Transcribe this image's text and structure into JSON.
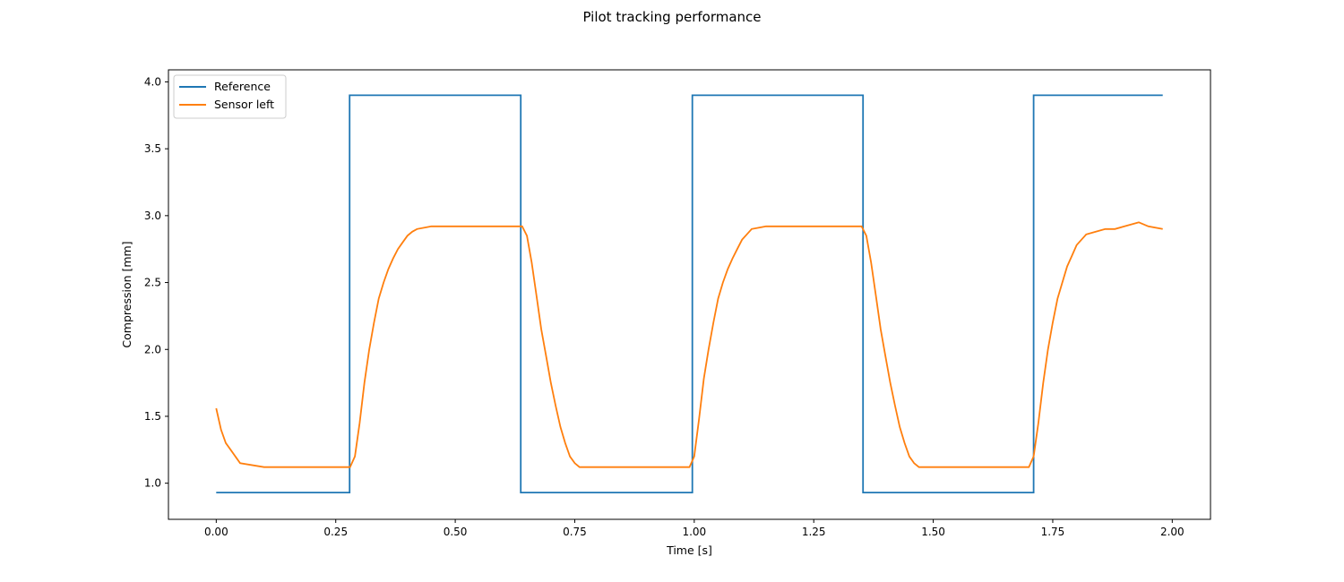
{
  "chart_data": {
    "type": "line",
    "title": "Pilot tracking performance",
    "xlabel": "Time [s]",
    "ylabel": "Compression [mm]",
    "xlim": [
      -0.1,
      2.08
    ],
    "ylim": [
      0.73,
      4.09
    ],
    "xticks": [
      0.0,
      0.25,
      0.5,
      0.75,
      1.0,
      1.25,
      1.5,
      1.75,
      2.0
    ],
    "xtick_labels": [
      "0.00",
      "0.25",
      "0.50",
      "0.75",
      "1.00",
      "1.25",
      "1.50",
      "1.75",
      "2.00"
    ],
    "yticks": [
      1.0,
      1.5,
      2.0,
      2.5,
      3.0,
      3.5,
      4.0
    ],
    "ytick_labels": [
      "1.0",
      "1.5",
      "2.0",
      "2.5",
      "3.0",
      "3.5",
      "4.0"
    ],
    "grid": false,
    "legend": {
      "position": "top-left"
    },
    "series": [
      {
        "name": "Reference",
        "color": "#1f77b4",
        "x": [
          0.0,
          0.279,
          0.279,
          0.637,
          0.637,
          0.996,
          0.996,
          1.353,
          1.353,
          1.71,
          1.71,
          1.98
        ],
        "values": [
          0.93,
          0.93,
          3.9,
          3.9,
          0.93,
          0.93,
          3.9,
          3.9,
          0.93,
          0.93,
          3.9,
          3.9
        ]
      },
      {
        "name": "Sensor left",
        "color": "#ff7f0e",
        "x": [
          0.0,
          0.01,
          0.02,
          0.03,
          0.04,
          0.05,
          0.1,
          0.2,
          0.28,
          0.29,
          0.3,
          0.31,
          0.32,
          0.33,
          0.34,
          0.35,
          0.36,
          0.37,
          0.38,
          0.39,
          0.4,
          0.41,
          0.42,
          0.45,
          0.5,
          0.55,
          0.6,
          0.64,
          0.65,
          0.66,
          0.67,
          0.68,
          0.69,
          0.7,
          0.71,
          0.72,
          0.73,
          0.74,
          0.75,
          0.76,
          0.8,
          0.9,
          0.99,
          1.0,
          1.01,
          1.02,
          1.03,
          1.04,
          1.05,
          1.06,
          1.07,
          1.08,
          1.09,
          1.1,
          1.11,
          1.12,
          1.15,
          1.2,
          1.25,
          1.3,
          1.35,
          1.36,
          1.37,
          1.38,
          1.39,
          1.4,
          1.41,
          1.42,
          1.43,
          1.44,
          1.45,
          1.46,
          1.47,
          1.48,
          1.5,
          1.6,
          1.7,
          1.71,
          1.72,
          1.73,
          1.74,
          1.75,
          1.76,
          1.77,
          1.78,
          1.79,
          1.8,
          1.81,
          1.82,
          1.84,
          1.86,
          1.88,
          1.9,
          1.93,
          1.95,
          1.98
        ],
        "values": [
          1.56,
          1.4,
          1.3,
          1.25,
          1.2,
          1.15,
          1.12,
          1.12,
          1.12,
          1.2,
          1.45,
          1.75,
          2.0,
          2.2,
          2.38,
          2.5,
          2.6,
          2.68,
          2.75,
          2.8,
          2.85,
          2.88,
          2.9,
          2.92,
          2.92,
          2.92,
          2.92,
          2.92,
          2.85,
          2.65,
          2.4,
          2.15,
          1.95,
          1.75,
          1.58,
          1.42,
          1.3,
          1.2,
          1.15,
          1.12,
          1.12,
          1.12,
          1.12,
          1.2,
          1.48,
          1.78,
          2.0,
          2.2,
          2.38,
          2.5,
          2.6,
          2.68,
          2.75,
          2.82,
          2.86,
          2.9,
          2.92,
          2.92,
          2.92,
          2.92,
          2.92,
          2.85,
          2.65,
          2.4,
          2.15,
          1.95,
          1.75,
          1.58,
          1.42,
          1.3,
          1.2,
          1.15,
          1.12,
          1.12,
          1.12,
          1.12,
          1.12,
          1.2,
          1.45,
          1.75,
          2.0,
          2.2,
          2.38,
          2.5,
          2.62,
          2.7,
          2.78,
          2.82,
          2.86,
          2.88,
          2.9,
          2.9,
          2.92,
          2.95,
          2.92,
          2.9
        ]
      }
    ]
  }
}
